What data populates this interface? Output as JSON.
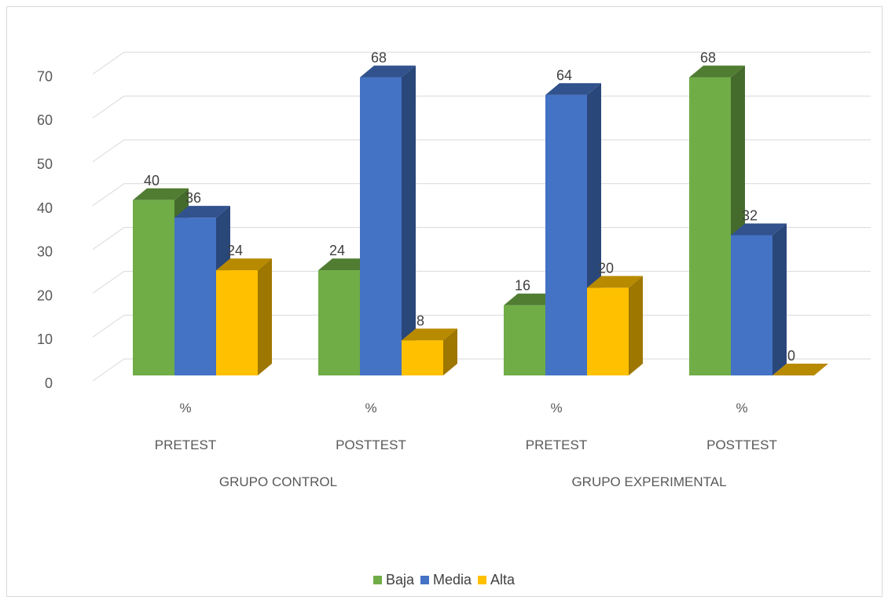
{
  "chart_data": {
    "type": "bar",
    "style": "3d-clustered-column",
    "categories": [
      {
        "unit": "%",
        "phase": "PRETEST",
        "group": "GRUPO CONTROL"
      },
      {
        "unit": "%",
        "phase": "POSTTEST",
        "group": "GRUPO CONTROL"
      },
      {
        "unit": "%",
        "phase": "PRETEST",
        "group": "GRUPO EXPERIMENTAL"
      },
      {
        "unit": "%",
        "phase": "POSTTEST",
        "group": "GRUPO EXPERIMENTAL"
      }
    ],
    "groups": [
      "GRUPO CONTROL",
      "GRUPO EXPERIMENTAL"
    ],
    "series": [
      {
        "name": "Baja",
        "color": "#70ad47",
        "values": [
          40,
          24,
          16,
          68
        ]
      },
      {
        "name": "Media",
        "color": "#4472c4",
        "values": [
          36,
          68,
          64,
          32
        ]
      },
      {
        "name": "Alta",
        "color": "#ffc000",
        "values": [
          24,
          8,
          20,
          0
        ]
      }
    ],
    "ylim": [
      0,
      70
    ],
    "yticks": [
      "0",
      "10",
      "20",
      "30",
      "40",
      "50",
      "60",
      "70"
    ],
    "grid": true,
    "data_labels": true,
    "legend_position": "bottom",
    "title": "",
    "xlabel": "",
    "ylabel": ""
  }
}
